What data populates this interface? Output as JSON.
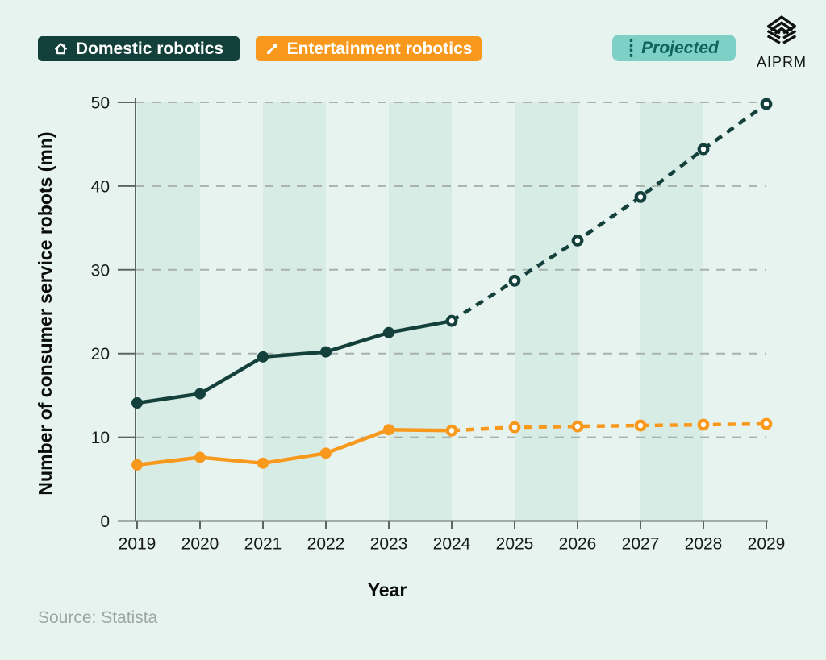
{
  "header": {
    "legend": {
      "domestic": {
        "label": "Domestic robotics",
        "bg": "#14403C",
        "text_color": "#FFFFFF",
        "icon": "home-icon"
      },
      "entertainment": {
        "label": "Entertainment robotics",
        "bg": "#F8991D",
        "text_color": "#FFFFFF",
        "icon": "toy-rocket-icon"
      }
    },
    "projected": {
      "label": "Projected",
      "bg": "#7ED0C7",
      "text_color": "#0D645A",
      "icon": "dotted-line-icon"
    },
    "logo": {
      "text": "AIPRM"
    }
  },
  "chart_data": {
    "type": "line",
    "title": "",
    "xlabel": "Year",
    "ylabel": "Number of consumer service robots (mn)",
    "x": [
      2019,
      2020,
      2021,
      2022,
      2023,
      2024,
      2025,
      2026,
      2027,
      2028,
      2029
    ],
    "series": [
      {
        "name": "Domestic robotics",
        "color": "#14403C",
        "projected_from_index": 5,
        "values": [
          14.1,
          15.2,
          19.6,
          20.2,
          22.5,
          23.9,
          28.7,
          33.5,
          38.7,
          44.4,
          49.8
        ]
      },
      {
        "name": "Entertainment robotics",
        "color": "#F8991D",
        "projected_from_index": 5,
        "values": [
          6.7,
          7.6,
          6.9,
          8.1,
          10.9,
          10.8,
          11.2,
          11.3,
          11.4,
          11.5,
          11.6
        ]
      }
    ],
    "ylim": [
      0,
      50
    ],
    "yticks": [
      0,
      10,
      20,
      30,
      40,
      50
    ],
    "grid": "horizontal dashed gridlines",
    "legend_position": "top",
    "projected_style": "dashed line with open circle markers from 2024 onward",
    "plot_background": "alternating vertical year bands"
  },
  "footer": {
    "source": "Source: Statista"
  }
}
